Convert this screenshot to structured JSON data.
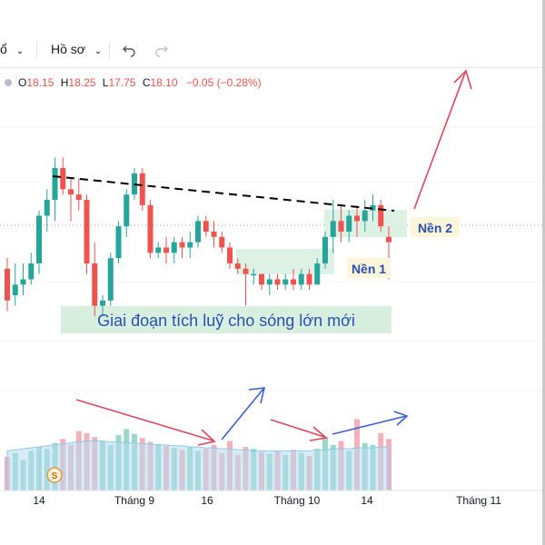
{
  "toolbar": {
    "item1_label": "ổ",
    "item1_chevron": "chevron-down-icon",
    "item2_label": "Hồ sơ",
    "item2_chevron": "chevron-down-icon",
    "undo_icon": "undo-icon",
    "redo_icon": "redo-icon"
  },
  "legend": {
    "open_label": "O",
    "open_value": "18.15",
    "high_label": "H",
    "high_value": "18.25",
    "low_label": "L",
    "low_value": "17.75",
    "close_label": "C",
    "close_value": "18.10",
    "change": "−0.05 (−0.28%)"
  },
  "annotations": {
    "base1": "Nền 1",
    "base2": "Nền 2",
    "phase": "Giai đoạn tích luỹ cho sóng lớn mới"
  },
  "xaxis": [
    "14",
    "Tháng 9",
    "16",
    "Tháng 10",
    "14",
    "Tháng 11"
  ],
  "event_marker": "S",
  "colors": {
    "up": "#26a69a",
    "down": "#ef5350",
    "trend": "#000000",
    "arrow_red": "#e0455a",
    "arrow_blue": "#3d5fd1",
    "highlight": "#d8efe0",
    "label_bg": "#fbf6d9",
    "label_text": "#2a4fb4",
    "volume_area": "#b7dcf0"
  },
  "chart_data": {
    "type": "candlestick",
    "ohlc": [
      [
        17.85,
        17.95,
        17.45,
        17.55
      ],
      [
        17.6,
        17.9,
        17.5,
        17.7
      ],
      [
        17.7,
        17.9,
        17.6,
        17.75
      ],
      [
        17.75,
        18.0,
        17.7,
        17.9
      ],
      [
        17.9,
        18.4,
        17.8,
        18.35
      ],
      [
        18.35,
        18.6,
        18.2,
        18.5
      ],
      [
        18.5,
        18.9,
        18.3,
        18.8
      ],
      [
        18.8,
        18.9,
        18.55,
        18.6
      ],
      [
        18.6,
        18.7,
        18.3,
        18.55
      ],
      [
        18.55,
        18.7,
        18.4,
        18.5
      ],
      [
        18.5,
        18.55,
        17.8,
        17.9
      ],
      [
        17.9,
        18.1,
        17.4,
        17.5
      ],
      [
        17.5,
        17.6,
        17.4,
        17.55
      ],
      [
        17.55,
        18.0,
        17.5,
        17.95
      ],
      [
        17.95,
        18.3,
        17.9,
        18.25
      ],
      [
        18.25,
        18.6,
        18.15,
        18.55
      ],
      [
        18.55,
        18.8,
        18.5,
        18.75
      ],
      [
        18.75,
        18.8,
        18.4,
        18.45
      ],
      [
        18.45,
        18.5,
        17.95,
        18.0
      ],
      [
        18.0,
        18.1,
        17.95,
        18.05
      ],
      [
        18.05,
        18.15,
        17.9,
        18.0
      ],
      [
        18.0,
        18.15,
        17.9,
        18.1
      ],
      [
        18.1,
        18.15,
        17.95,
        18.05
      ],
      [
        18.05,
        18.2,
        17.95,
        18.1
      ],
      [
        18.1,
        18.35,
        18.05,
        18.3
      ],
      [
        18.3,
        18.35,
        18.15,
        18.2
      ],
      [
        18.2,
        18.3,
        18.05,
        18.15
      ],
      [
        18.15,
        18.2,
        18.0,
        18.05
      ],
      [
        18.05,
        18.1,
        17.85,
        17.9
      ],
      [
        17.9,
        17.95,
        17.8,
        17.85
      ],
      [
        17.85,
        17.9,
        17.5,
        17.8
      ],
      [
        17.8,
        17.85,
        17.7,
        17.8
      ],
      [
        17.8,
        17.8,
        17.65,
        17.7
      ],
      [
        17.7,
        17.8,
        17.6,
        17.75
      ],
      [
        17.75,
        17.8,
        17.65,
        17.7
      ],
      [
        17.7,
        17.8,
        17.65,
        17.75
      ],
      [
        17.75,
        17.85,
        17.65,
        17.7
      ],
      [
        17.7,
        17.85,
        17.65,
        17.8
      ],
      [
        17.8,
        17.85,
        17.65,
        17.7
      ],
      [
        17.7,
        17.95,
        17.7,
        17.9
      ],
      [
        17.9,
        18.2,
        17.85,
        18.15
      ],
      [
        18.15,
        18.5,
        18.0,
        18.3
      ],
      [
        18.3,
        18.45,
        18.1,
        18.2
      ],
      [
        18.2,
        18.4,
        18.1,
        18.35
      ],
      [
        18.35,
        18.45,
        18.15,
        18.3
      ],
      [
        18.3,
        18.5,
        18.2,
        18.4
      ],
      [
        18.4,
        18.55,
        18.3,
        18.45
      ],
      [
        18.45,
        18.5,
        18.2,
        18.25
      ],
      [
        18.15,
        18.25,
        17.75,
        18.1
      ]
    ],
    "volume": [
      34,
      38,
      31,
      40,
      44,
      42,
      48,
      52,
      46,
      60,
      58,
      54,
      50,
      46,
      56,
      62,
      57,
      53,
      49,
      47,
      45,
      43,
      41,
      44,
      40,
      42,
      46,
      38,
      50,
      36,
      44,
      42,
      39,
      37,
      40,
      36,
      41,
      38,
      35,
      42,
      54,
      46,
      50,
      40,
      72,
      48,
      46,
      58,
      52
    ],
    "volume_ma": [
      40,
      41,
      42,
      43,
      44,
      45,
      46,
      47,
      48,
      49,
      50,
      50,
      50,
      49,
      49,
      48,
      48,
      47,
      47,
      46,
      46,
      45,
      45,
      44,
      44,
      43,
      43,
      42,
      42,
      41,
      41,
      40,
      40,
      40,
      40,
      40,
      40,
      40,
      40,
      41,
      41,
      42,
      42,
      42,
      43,
      43,
      43,
      44,
      44
    ],
    "y_range": [
      17.3,
      19.4
    ],
    "volume_range": [
      0,
      110
    ],
    "xlabel": "",
    "ylabel": ""
  }
}
